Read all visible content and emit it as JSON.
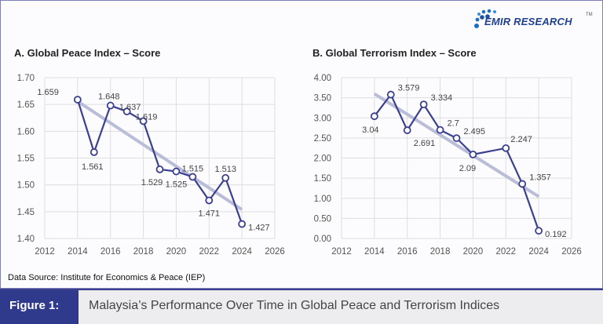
{
  "brand": {
    "name": "EMIR RESEARCH",
    "tm": "TM",
    "color": "#1f3f8f"
  },
  "source": "Data Source: Institute for Economics  & Peace (IEP)",
  "figure": {
    "label": "Figure 1:",
    "caption": "Malaysia’s Performance Over Time in Global Peace and Terrorism Indices"
  },
  "colors": {
    "series": "#3a3f8e",
    "trend": "#b9bdd8",
    "grid": "#dedede",
    "figure_bg": "#2f3a8c"
  },
  "chart_data": [
    {
      "type": "line",
      "title": "A. Global Peace Index – Score",
      "x": [
        2014,
        2015,
        2016,
        2017,
        2018,
        2019,
        2020,
        2021,
        2022,
        2023,
        2024
      ],
      "values": [
        1.659,
        1.561,
        1.648,
        1.637,
        1.619,
        1.529,
        1.525,
        1.515,
        1.471,
        1.513,
        1.427
      ],
      "labels": [
        "1.659",
        "1.561",
        "1.648",
        "1.637",
        "1.619",
        "1.529",
        "1.525",
        "1.515",
        "1.471",
        "1.513",
        "1.427"
      ],
      "xlim": [
        2012,
        2026
      ],
      "ylim": [
        1.4,
        1.7
      ],
      "xticks": [
        "2012",
        "2014",
        "2016",
        "2018",
        "2020",
        "2022",
        "2024",
        "2026"
      ],
      "yticks": [
        "1.40",
        "1.45",
        "1.50",
        "1.55",
        "1.60",
        "1.65",
        "1.70"
      ],
      "trendline": {
        "type": "linear"
      },
      "grid": true
    },
    {
      "type": "line",
      "title": "B. Global Terrorism Index – Score",
      "x": [
        2014,
        2015,
        2016,
        2017,
        2018,
        2019,
        2020,
        2022,
        2023,
        2024
      ],
      "values": [
        3.04,
        3.579,
        2.691,
        3.334,
        2.7,
        2.495,
        2.09,
        2.247,
        1.357,
        0.192
      ],
      "labels": [
        "3.04",
        "3.579",
        "2.691",
        "3.334",
        "2.7",
        "2.495",
        "2.09",
        "2.247",
        "1.357",
        "0.192"
      ],
      "xlim": [
        2012,
        2026
      ],
      "ylim": [
        0,
        4
      ],
      "xticks": [
        "2012",
        "2014",
        "2016",
        "2018",
        "2020",
        "2022",
        "2024",
        "2026"
      ],
      "yticks": [
        "0.00",
        "0.50",
        "1.00",
        "1.50",
        "2.00",
        "2.50",
        "3.00",
        "3.50",
        "4.00"
      ],
      "trendline": {
        "type": "linear"
      },
      "grid": true
    }
  ]
}
